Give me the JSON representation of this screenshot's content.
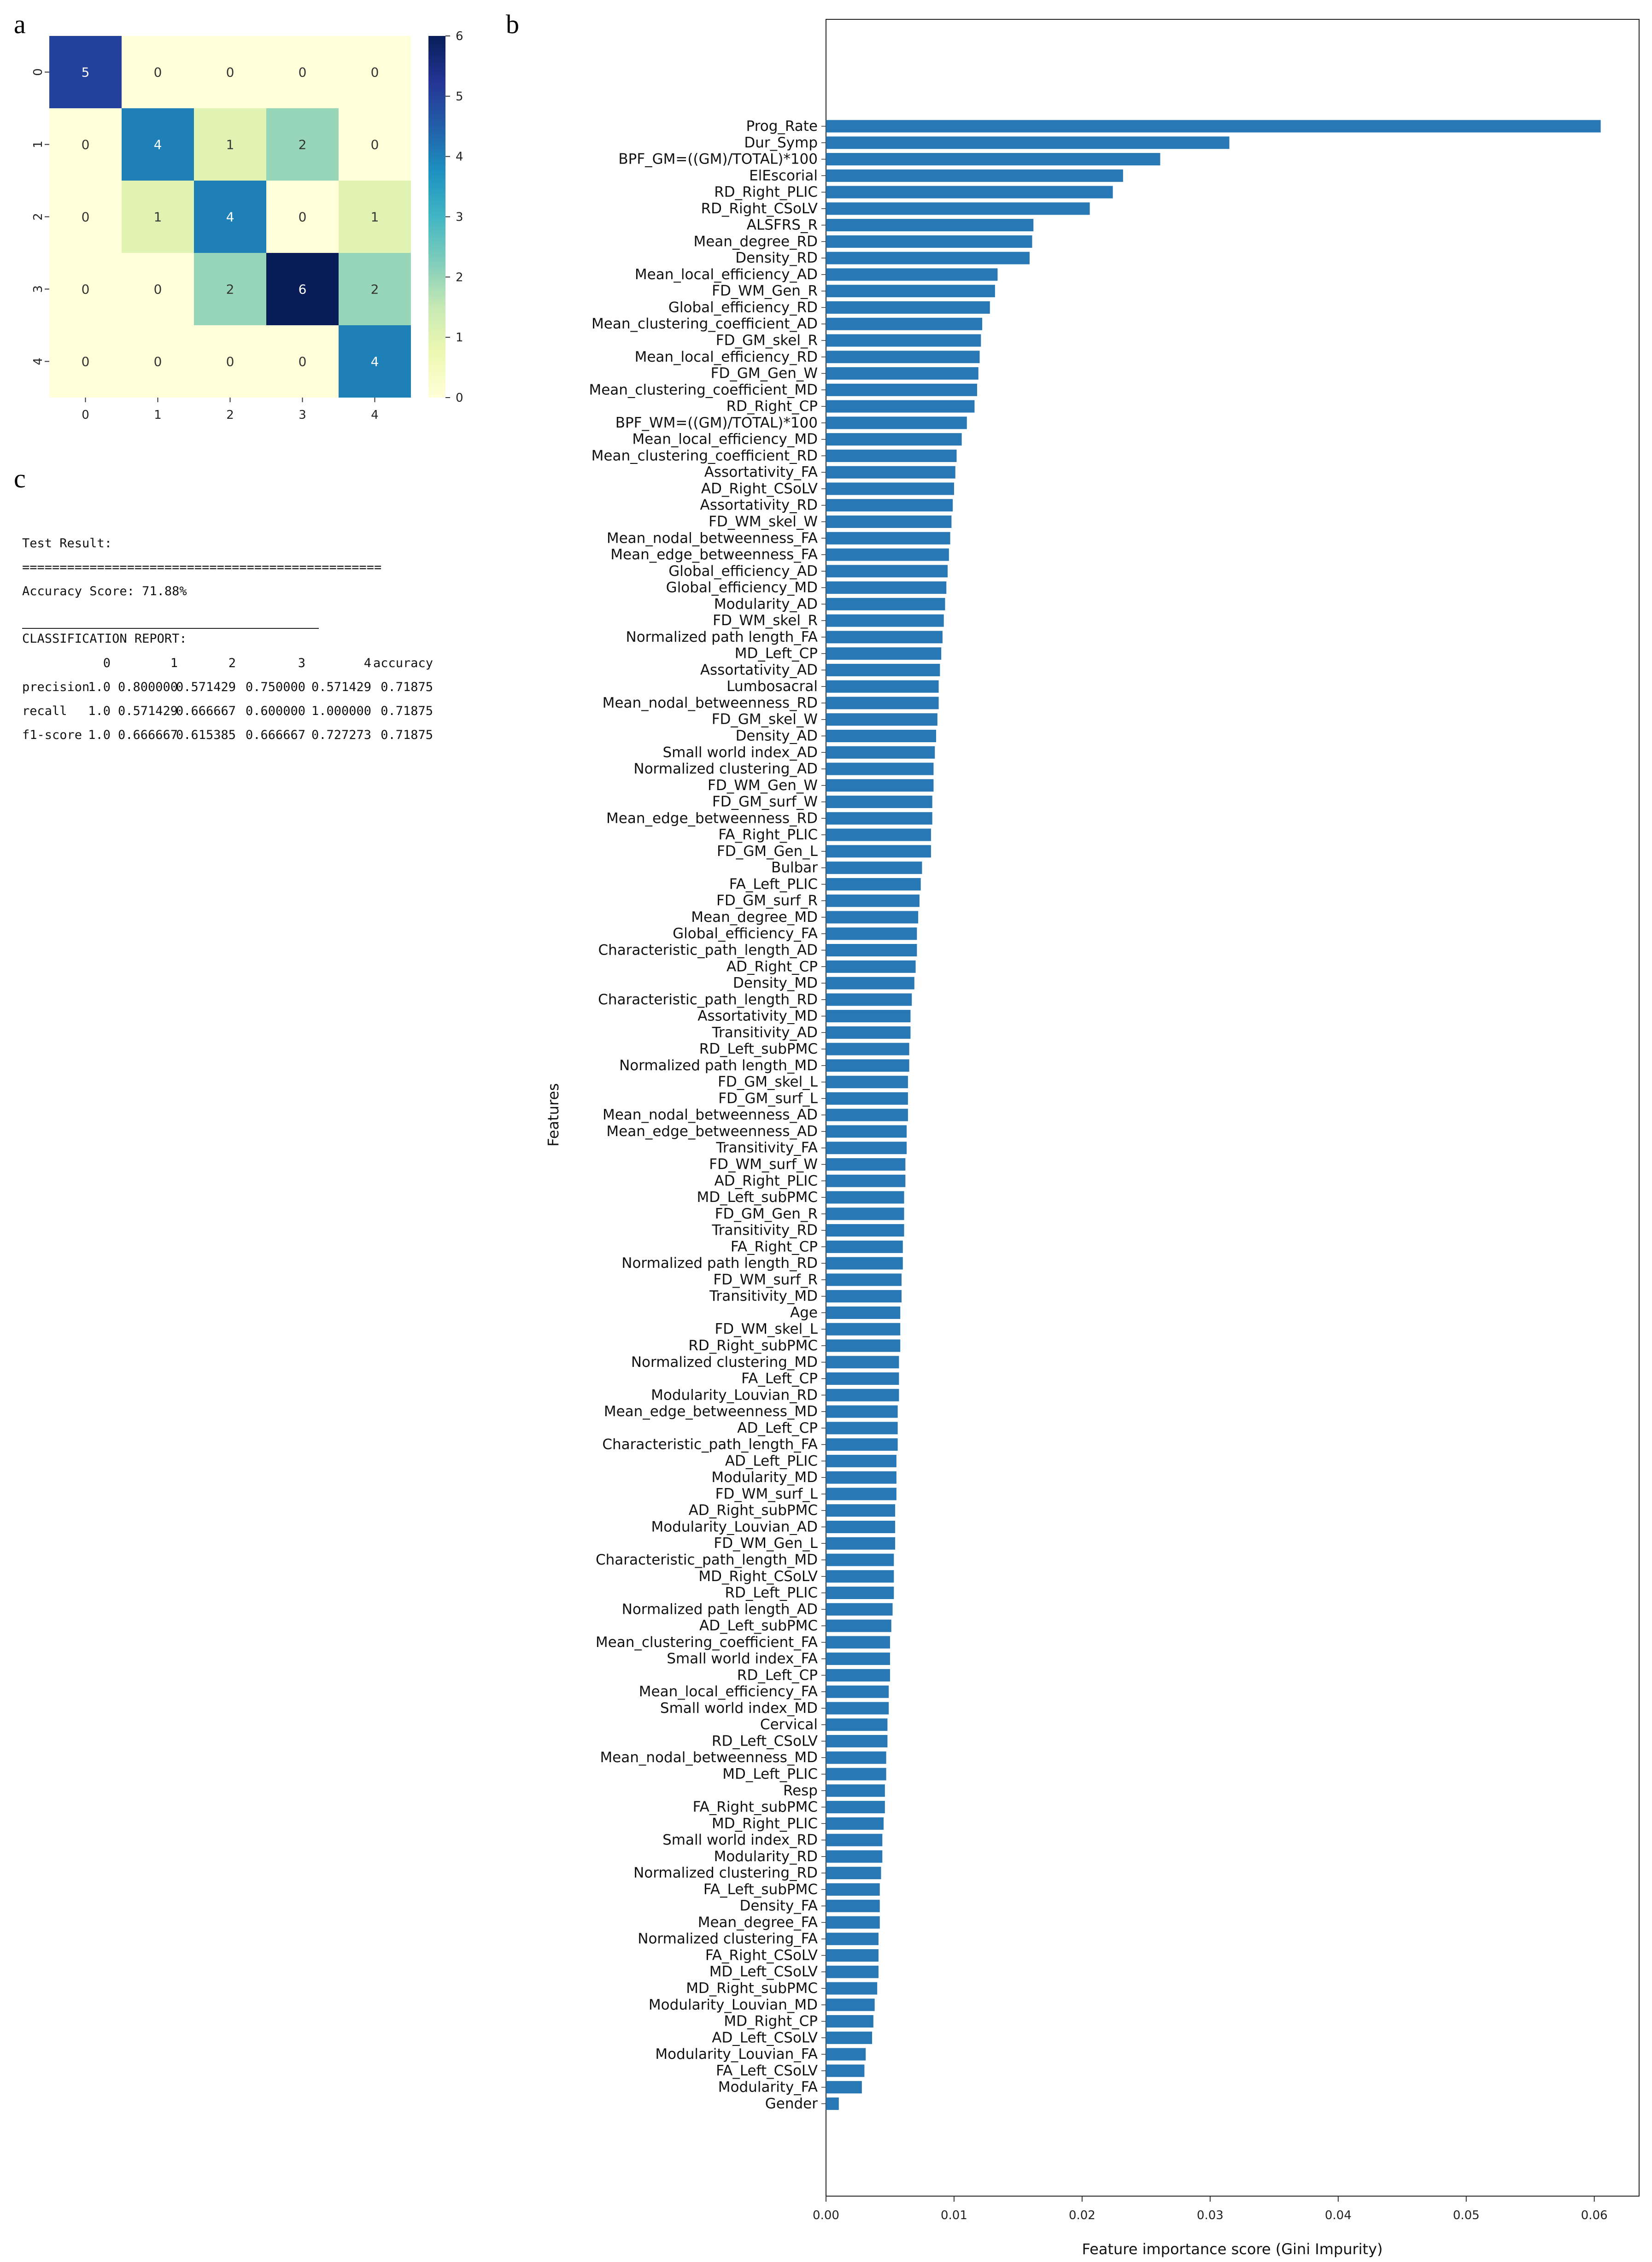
{
  "panels": {
    "a": "a",
    "b": "b",
    "c": "c"
  },
  "chart_data": [
    {
      "type": "heatmap",
      "panel": "a",
      "rows": [
        "0",
        "1",
        "2",
        "3",
        "4"
      ],
      "cols": [
        "0",
        "1",
        "2",
        "3",
        "4"
      ],
      "values": [
        [
          5,
          0,
          0,
          0,
          0
        ],
        [
          0,
          4,
          1,
          2,
          0
        ],
        [
          0,
          1,
          4,
          0,
          1
        ],
        [
          0,
          0,
          2,
          6,
          2
        ],
        [
          0,
          0,
          0,
          0,
          4
        ]
      ],
      "colorbar_range": [
        0,
        6
      ],
      "colorbar_ticks": [
        "0",
        "1",
        "2",
        "3",
        "4",
        "5",
        "6"
      ],
      "colormap": [
        "#ffffd9",
        "#edf8b1",
        "#c7e9b4",
        "#7fcdbb",
        "#41b6c4",
        "#1d91c0",
        "#225ea8",
        "#253494",
        "#081d58"
      ]
    },
    {
      "type": "bar",
      "panel": "b",
      "orientation": "horizontal",
      "xlabel": "Feature importance score (Gini Impurity)",
      "ylabel": "Features",
      "xlim": [
        0,
        0.0635
      ],
      "xticks": [
        0.0,
        0.01,
        0.02,
        0.03,
        0.04,
        0.05,
        0.06
      ],
      "xtick_labels": [
        "0.00",
        "0.01",
        "0.02",
        "0.03",
        "0.04",
        "0.05",
        "0.06"
      ],
      "bar_color": "#2878b5",
      "categories": [
        "Prog_Rate",
        "Dur_Symp",
        "BPF_GM=((GM)/TOTAL)*100",
        "ElEscorial",
        "RD_Right_PLIC",
        "RD_Right_CSoLV",
        "ALSFRS_R",
        "Mean_degree_RD",
        "Density_RD",
        "Mean_local_efficiency_AD",
        "FD_WM_Gen_R",
        "Global_efficiency_RD",
        "Mean_clustering_coefficient_AD",
        "FD_GM_skel_R",
        "Mean_local_efficiency_RD",
        "FD_GM_Gen_W",
        "Mean_clustering_coefficient_MD",
        "RD_Right_CP",
        "BPF_WM=((GM)/TOTAL)*100",
        "Mean_local_efficiency_MD",
        "Mean_clustering_coefficient_RD",
        "Assortativity_FA",
        "AD_Right_CSoLV",
        "Assortativity_RD",
        "FD_WM_skel_W",
        "Mean_nodal_betweenness_FA",
        "Mean_edge_betweenness_FA",
        "Global_efficiency_AD",
        "Global_efficiency_MD",
        "Modularity_AD",
        "FD_WM_skel_R",
        "Normalized path length_FA",
        "MD_Left_CP",
        "Assortativity_AD",
        "Lumbosacral",
        "Mean_nodal_betweenness_RD",
        "FD_GM_skel_W",
        "Density_AD",
        "Small world index_AD",
        "Normalized clustering_AD",
        "FD_WM_Gen_W",
        "FD_GM_surf_W",
        "Mean_edge_betweenness_RD",
        "FA_Right_PLIC",
        "FD_GM_Gen_L",
        "Bulbar",
        "FA_Left_PLIC",
        "FD_GM_surf_R",
        "Mean_degree_MD",
        "Global_efficiency_FA",
        "Characteristic_path_length_AD",
        "AD_Right_CP",
        "Density_MD",
        "Characteristic_path_length_RD",
        "Assortativity_MD",
        "Transitivity_AD",
        "RD_Left_subPMC",
        "Normalized path length_MD",
        "FD_GM_skel_L",
        "FD_GM_surf_L",
        "Mean_nodal_betweenness_AD",
        "Mean_edge_betweenness_AD",
        "Transitivity_FA",
        "FD_WM_surf_W",
        "AD_Right_PLIC",
        "MD_Left_subPMC",
        "FD_GM_Gen_R",
        "Transitivity_RD",
        "FA_Right_CP",
        "Normalized path length_RD",
        "FD_WM_surf_R",
        "Transitivity_MD",
        "Age",
        "FD_WM_skel_L",
        "RD_Right_subPMC",
        "Normalized clustering_MD",
        "FA_Left_CP",
        "Modularity_Louvian_RD",
        "Mean_edge_betweenness_MD",
        "AD_Left_CP",
        "Characteristic_path_length_FA",
        "AD_Left_PLIC",
        "Modularity_MD",
        "FD_WM_surf_L",
        "AD_Right_subPMC",
        "Modularity_Louvian_AD",
        "FD_WM_Gen_L",
        "Characteristic_path_length_MD",
        "MD_Right_CSoLV",
        "RD_Left_PLIC",
        "Normalized path length_AD",
        "AD_Left_subPMC",
        "Mean_clustering_coefficient_FA",
        "Small world index_FA",
        "RD_Left_CP",
        "Mean_local_efficiency_FA",
        "Small world index_MD",
        "Cervical",
        "RD_Left_CSoLV",
        "Mean_nodal_betweenness_MD",
        "MD_Left_PLIC",
        "Resp",
        "FA_Right_subPMC",
        "MD_Right_PLIC",
        "Small world index_RD",
        "Modularity_RD",
        "Normalized clustering_RD",
        "FA_Left_subPMC",
        "Density_FA",
        "Mean_degree_FA",
        "Normalized clustering_FA",
        "FA_Right_CSoLV",
        "MD_Left_CSoLV",
        "MD_Right_subPMC",
        "Modularity_Louvian_MD",
        "MD_Right_CP",
        "AD_Left_CSoLV",
        "Modularity_Louvian_FA",
        "FA_Left_CSoLV",
        "Modularity_FA",
        "Gender"
      ],
      "values": [
        0.0605,
        0.0315,
        0.0261,
        0.0232,
        0.0224,
        0.0206,
        0.0162,
        0.0161,
        0.0159,
        0.0134,
        0.0132,
        0.0128,
        0.0122,
        0.0121,
        0.012,
        0.0119,
        0.0118,
        0.0116,
        0.011,
        0.0106,
        0.0102,
        0.0101,
        0.01,
        0.0099,
        0.0098,
        0.0097,
        0.0096,
        0.0095,
        0.0094,
        0.0093,
        0.0092,
        0.0091,
        0.009,
        0.0089,
        0.0088,
        0.0088,
        0.0087,
        0.0086,
        0.0085,
        0.0084,
        0.0084,
        0.0083,
        0.0083,
        0.0082,
        0.0082,
        0.0075,
        0.0074,
        0.0073,
        0.0072,
        0.0071,
        0.0071,
        0.007,
        0.0069,
        0.0067,
        0.0066,
        0.0066,
        0.0065,
        0.0065,
        0.0064,
        0.0064,
        0.0064,
        0.0063,
        0.0063,
        0.0062,
        0.0062,
        0.0061,
        0.0061,
        0.0061,
        0.006,
        0.006,
        0.0059,
        0.0059,
        0.0058,
        0.0058,
        0.0058,
        0.0057,
        0.0057,
        0.0057,
        0.0056,
        0.0056,
        0.0056,
        0.0055,
        0.0055,
        0.0055,
        0.0054,
        0.0054,
        0.0054,
        0.0053,
        0.0053,
        0.0053,
        0.0052,
        0.0051,
        0.005,
        0.005,
        0.005,
        0.0049,
        0.0049,
        0.0048,
        0.0048,
        0.0047,
        0.0047,
        0.0046,
        0.0046,
        0.0045,
        0.0044,
        0.0044,
        0.0043,
        0.0042,
        0.0042,
        0.0042,
        0.0041,
        0.0041,
        0.0041,
        0.004,
        0.0038,
        0.0037,
        0.0036,
        0.0031,
        0.003,
        0.0028,
        0.001
      ]
    },
    {
      "type": "table",
      "panel": "c",
      "title": "Test Result:",
      "rule_line": "================================================",
      "accuracy_line": "Accuracy Score: 71.88%",
      "underline": "_______________________________________________",
      "report_heading": "CLASSIFICATION REPORT:",
      "columns": [
        "0",
        "1",
        "2",
        "3",
        "4",
        "accuracy"
      ],
      "rows": [
        {
          "label": "precision",
          "cells": [
            "1.0",
            "0.800000",
            "0.571429",
            "0.750000",
            "0.571429",
            "0.71875"
          ]
        },
        {
          "label": "recall",
          "cells": [
            "1.0",
            "0.571429",
            "0.666667",
            "0.600000",
            "1.000000",
            "0.71875"
          ]
        },
        {
          "label": "f1-score",
          "cells": [
            "1.0",
            "0.666667",
            "0.615385",
            "0.666667",
            "0.727273",
            "0.71875"
          ]
        }
      ]
    }
  ]
}
